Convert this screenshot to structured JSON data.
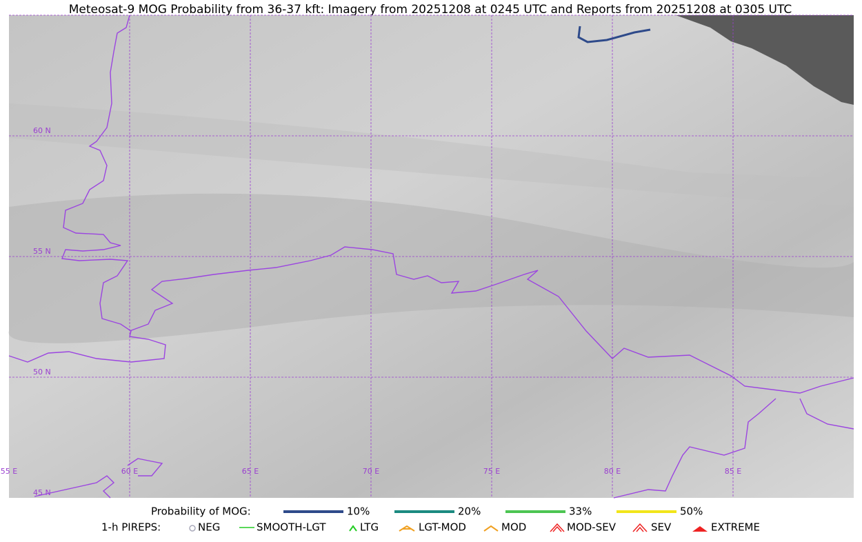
{
  "title": "Meteosat-9 MOG Probability from 36-37 kft: Imagery from 20251208 at 0245 UTC and Reports from 20251208 at 0305 UTC",
  "map": {
    "lat_labels": [
      "60 N",
      "55 N",
      "50 N",
      "45 N"
    ],
    "lon_labels": [
      "55 E",
      "60 E",
      "65 E",
      "70 E",
      "75 E",
      "80 E",
      "85 E"
    ]
  },
  "legend": {
    "probability": {
      "label": "Probability of MOG:",
      "items": [
        {
          "label": "10%",
          "color": "#2e4a8a"
        },
        {
          "label": "20%",
          "color": "#1b8a80"
        },
        {
          "label": "33%",
          "color": "#4cc552"
        },
        {
          "label": "50%",
          "color": "#f2e51a"
        }
      ]
    },
    "pireps": {
      "label": "1-h PIREPS:",
      "items": [
        "NEG",
        "SMOOTH-LGT",
        "LTG",
        "LGT-MOD",
        "MOD",
        "MOD-SEV",
        "SEV",
        "EXTREME"
      ]
    }
  }
}
